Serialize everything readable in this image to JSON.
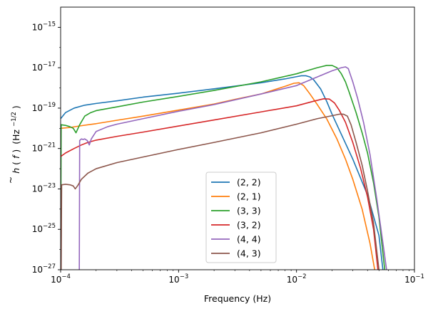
{
  "chart_data": {
    "type": "line",
    "title": "",
    "xlabel": "Frequency (Hz)",
    "ylabel_parts": {
      "h": "h",
      "tilde": "~",
      "open": "(",
      "f": "f",
      "close": ")",
      "unit": "(Hz",
      "exp": "−1/2",
      "unit_close": ")"
    },
    "xscale": "log",
    "yscale": "log",
    "xlim": [
      0.0001,
      0.1
    ],
    "ylim": [
      1e-27,
      1e-14
    ],
    "x_ticks": [
      {
        "value": 0.0001,
        "base": "10",
        "exp": "−4"
      },
      {
        "value": 0.001,
        "base": "10",
        "exp": "−3"
      },
      {
        "value": 0.01,
        "base": "10",
        "exp": "−2"
      },
      {
        "value": 0.1,
        "base": "10",
        "exp": "−1"
      }
    ],
    "y_ticks": [
      {
        "value": 1e-27,
        "base": "10",
        "exp": "−27"
      },
      {
        "value": 1e-25,
        "base": "10",
        "exp": "−25"
      },
      {
        "value": 1e-23,
        "base": "10",
        "exp": "−23"
      },
      {
        "value": 1e-21,
        "base": "10",
        "exp": "−21"
      },
      {
        "value": 1e-19,
        "base": "10",
        "exp": "−19"
      },
      {
        "value": 1e-17,
        "base": "10",
        "exp": "−17"
      },
      {
        "value": 1e-15,
        "base": "10",
        "exp": "−15"
      }
    ],
    "legend_position": "lower center",
    "series": [
      {
        "name": "(2, 2)",
        "color": "#1f77b4",
        "points": [
          [
            0.0001,
            3e-20
          ],
          [
            0.00011,
            6e-20
          ],
          [
            0.00013,
            1e-19
          ],
          [
            0.00016,
            1.4e-19
          ],
          [
            0.0002,
            1.7e-19
          ],
          [
            0.0003,
            2.3e-19
          ],
          [
            0.0005,
            3.5e-19
          ],
          [
            0.001,
            5.5e-19
          ],
          [
            0.002,
            9e-19
          ],
          [
            0.005,
            1.8e-18
          ],
          [
            0.008,
            2.8e-18
          ],
          [
            0.01,
            3.6e-18
          ],
          [
            0.011,
            4e-18
          ],
          [
            0.012,
            4e-18
          ],
          [
            0.013,
            3.5e-18
          ],
          [
            0.014,
            2.5e-18
          ],
          [
            0.016,
            9e-19
          ],
          [
            0.018,
            2.2e-19
          ],
          [
            0.02,
            5e-20
          ],
          [
            0.024,
            5e-21
          ],
          [
            0.03,
            3e-22
          ],
          [
            0.04,
            5e-24
          ],
          [
            0.05,
            5e-26
          ],
          [
            0.054,
            1e-27
          ]
        ]
      },
      {
        "name": "(2, 1)",
        "color": "#ff7f0e",
        "points": [
          [
            0.0001,
            1e-20
          ],
          [
            0.00012,
            1.1e-20
          ],
          [
            0.00015,
            1.35e-20
          ],
          [
            0.0002,
            1.7e-20
          ],
          [
            0.0003,
            2.5e-20
          ],
          [
            0.0005,
            4e-20
          ],
          [
            0.001,
            8e-20
          ],
          [
            0.002,
            1.6e-19
          ],
          [
            0.003,
            2.7e-19
          ],
          [
            0.005,
            5e-19
          ],
          [
            0.008,
            1.2e-18
          ],
          [
            0.0095,
            1.7e-18
          ],
          [
            0.0105,
            1.8e-18
          ],
          [
            0.0115,
            1.3e-18
          ],
          [
            0.013,
            5e-19
          ],
          [
            0.015,
            1.5e-19
          ],
          [
            0.018,
            3e-20
          ],
          [
            0.022,
            3e-21
          ],
          [
            0.026,
            3e-22
          ],
          [
            0.03,
            3e-23
          ],
          [
            0.036,
            1e-24
          ],
          [
            0.042,
            2e-26
          ],
          [
            0.046,
            1e-27
          ]
        ]
      },
      {
        "name": "(3, 3)",
        "color": "#2ca02c",
        "points": [
          [
            0.0001,
            1e-27
          ],
          [
            0.000101,
            1.5e-20
          ],
          [
            0.00011,
            1.4e-20
          ],
          [
            0.00012,
            1.2e-20
          ],
          [
            0.000128,
            1e-20
          ],
          [
            0.000135,
            6e-21
          ],
          [
            0.000145,
            1.5e-20
          ],
          [
            0.00016,
            4e-20
          ],
          [
            0.00018,
            6e-20
          ],
          [
            0.0002,
            7.5e-20
          ],
          [
            0.0003,
            1.15e-19
          ],
          [
            0.0005,
            2e-19
          ],
          [
            0.001,
            3.8e-19
          ],
          [
            0.002,
            7.5e-19
          ],
          [
            0.005,
            2e-18
          ],
          [
            0.01,
            5e-18
          ],
          [
            0.015,
            1e-17
          ],
          [
            0.018,
            1.3e-17
          ],
          [
            0.02,
            1.3e-17
          ],
          [
            0.022,
            1e-17
          ],
          [
            0.024,
            5e-18
          ],
          [
            0.026,
            2e-18
          ],
          [
            0.028,
            6e-19
          ],
          [
            0.032,
            6e-20
          ],
          [
            0.036,
            6e-21
          ],
          [
            0.04,
            6e-22
          ],
          [
            0.045,
            2e-23
          ],
          [
            0.05,
            4e-25
          ],
          [
            0.056,
            1e-27
          ]
        ]
      },
      {
        "name": "(3, 2)",
        "color": "#d62728",
        "points": [
          [
            0.0001,
            4e-22
          ],
          [
            0.00011,
            6e-22
          ],
          [
            0.00013,
            1e-21
          ],
          [
            0.00015,
            1.5e-21
          ],
          [
            0.00017,
            2e-21
          ],
          [
            0.0002,
            2.6e-21
          ],
          [
            0.0003,
            4e-21
          ],
          [
            0.0005,
            6.5e-21
          ],
          [
            0.001,
            1.3e-20
          ],
          [
            0.002,
            2.6e-20
          ],
          [
            0.005,
            6.5e-20
          ],
          [
            0.01,
            1.3e-19
          ],
          [
            0.014,
            2.2e-19
          ],
          [
            0.017,
            2.9e-19
          ],
          [
            0.019,
            2.8e-19
          ],
          [
            0.021,
            1.8e-19
          ],
          [
            0.023,
            8e-20
          ],
          [
            0.026,
            2e-20
          ],
          [
            0.03,
            2e-21
          ],
          [
            0.035,
            1e-22
          ],
          [
            0.04,
            4e-24
          ],
          [
            0.045,
            1e-25
          ],
          [
            0.049,
            1e-27
          ]
        ]
      },
      {
        "name": "(4, 4)",
        "color": "#9467bd",
        "points": [
          [
            0.000144,
            1e-27
          ],
          [
            0.000145,
            2.5e-21
          ],
          [
            0.00015,
            3e-21
          ],
          [
            0.000155,
            2.8e-21
          ],
          [
            0.00016,
            3e-21
          ],
          [
            0.000168,
            2.5e-21
          ],
          [
            0.000175,
            1.5e-21
          ],
          [
            0.000182,
            3e-21
          ],
          [
            0.0002,
            7e-21
          ],
          [
            0.00025,
            1.2e-20
          ],
          [
            0.0003,
            1.6e-20
          ],
          [
            0.0005,
            3e-20
          ],
          [
            0.001,
            7e-20
          ],
          [
            0.002,
            1.5e-19
          ],
          [
            0.005,
            5e-19
          ],
          [
            0.01,
            1.3e-18
          ],
          [
            0.015,
            3.5e-18
          ],
          [
            0.02,
            7e-18
          ],
          [
            0.024,
            1e-17
          ],
          [
            0.026,
            1.1e-17
          ],
          [
            0.0275,
            9e-18
          ],
          [
            0.03,
            2e-18
          ],
          [
            0.033,
            3e-19
          ],
          [
            0.037,
            2e-20
          ],
          [
            0.042,
            5e-22
          ],
          [
            0.048,
            3e-24
          ],
          [
            0.055,
            1e-26
          ],
          [
            0.058,
            1e-27
          ]
        ]
      },
      {
        "name": "(4, 3)",
        "color": "#8c564b",
        "points": [
          [
            0.000101,
            1e-27
          ],
          [
            0.000102,
            1.6e-23
          ],
          [
            0.00011,
            1.7e-23
          ],
          [
            0.00012,
            1.6e-23
          ],
          [
            0.000128,
            1.4e-23
          ],
          [
            0.000133,
            1e-23
          ],
          [
            0.00014,
            1.5e-23
          ],
          [
            0.00015,
            3e-23
          ],
          [
            0.00017,
            6e-23
          ],
          [
            0.0002,
            1e-22
          ],
          [
            0.0003,
            2e-22
          ],
          [
            0.0005,
            3.8e-22
          ],
          [
            0.001,
            9e-22
          ],
          [
            0.002,
            2e-21
          ],
          [
            0.005,
            6e-21
          ],
          [
            0.01,
            1.6e-20
          ],
          [
            0.015,
            3e-20
          ],
          [
            0.02,
            4.2e-20
          ],
          [
            0.023,
            5e-20
          ],
          [
            0.025,
            5e-20
          ],
          [
            0.027,
            4e-20
          ],
          [
            0.029,
            1.5e-20
          ],
          [
            0.032,
            2e-21
          ],
          [
            0.036,
            1.5e-22
          ],
          [
            0.04,
            8e-24
          ],
          [
            0.045,
            2e-25
          ],
          [
            0.05,
            1e-27
          ]
        ]
      }
    ]
  }
}
